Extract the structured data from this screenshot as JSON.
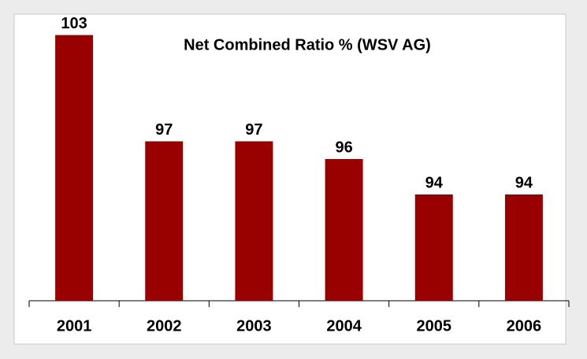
{
  "chart_data": {
    "type": "bar",
    "title": "Net Combined Ratio % (WSV AG)",
    "categories": [
      "2001",
      "2002",
      "2003",
      "2004",
      "2005",
      "2006"
    ],
    "values": [
      103,
      97,
      97,
      96,
      94,
      94
    ],
    "color": "#990000",
    "ylim": [
      88,
      104
    ]
  }
}
